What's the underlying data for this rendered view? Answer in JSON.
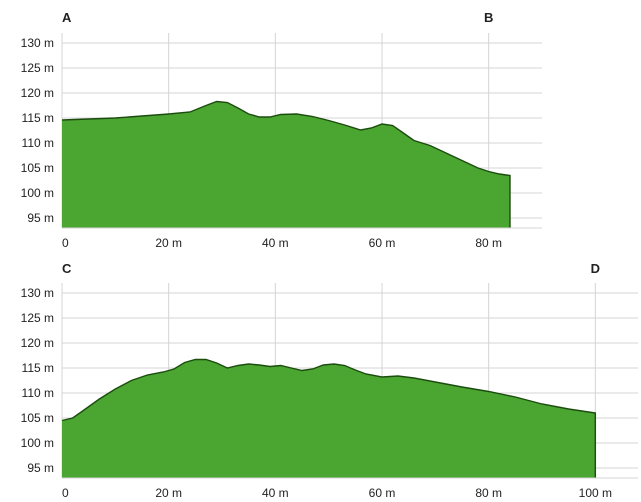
{
  "chart_data": [
    {
      "type": "area",
      "start_label": "A",
      "end_label": "B",
      "x_ticks": [
        "0",
        "20 m",
        "40 m",
        "60 m",
        "80 m"
      ],
      "y_ticks": [
        "95 m",
        "100 m",
        "105 m",
        "110 m",
        "115 m",
        "120 m",
        "125 m",
        "130 m"
      ],
      "xlim": [
        0,
        90
      ],
      "ylim": [
        93,
        132
      ],
      "grid": true,
      "x": [
        0,
        5,
        10,
        15,
        20,
        24,
        27,
        29,
        31,
        33,
        35,
        37,
        39,
        41,
        44,
        47,
        50,
        53,
        56,
        58,
        60,
        62,
        64,
        66,
        69,
        72,
        75,
        78,
        80,
        82,
        84
      ],
      "y": [
        114.6,
        114.8,
        115.0,
        115.4,
        115.8,
        116.2,
        117.5,
        118.3,
        118.1,
        117.0,
        115.8,
        115.2,
        115.2,
        115.7,
        115.8,
        115.3,
        114.5,
        113.6,
        112.6,
        113.0,
        113.8,
        113.5,
        112.0,
        110.5,
        109.5,
        108.0,
        106.5,
        105.0,
        104.3,
        103.8,
        103.5
      ]
    },
    {
      "type": "area",
      "start_label": "C",
      "end_label": "D",
      "x_ticks": [
        "0",
        "20 m",
        "40 m",
        "60 m",
        "80 m",
        "100 m"
      ],
      "y_ticks": [
        "95 m",
        "100 m",
        "105 m",
        "110 m",
        "115 m",
        "120 m",
        "125 m",
        "130 m"
      ],
      "xlim": [
        0,
        108
      ],
      "ylim": [
        93,
        132
      ],
      "grid": true,
      "x": [
        0,
        2,
        4,
        7,
        10,
        13,
        16,
        19,
        21,
        23,
        25,
        27,
        29,
        31,
        33,
        35,
        37,
        39,
        41,
        43,
        45,
        47,
        49,
        51,
        53,
        55,
        57,
        60,
        63,
        66,
        70,
        75,
        80,
        85,
        90,
        95,
        100
      ],
      "y": [
        104.5,
        105.0,
        106.5,
        108.8,
        110.8,
        112.5,
        113.6,
        114.2,
        114.8,
        116.1,
        116.7,
        116.7,
        116.0,
        115.0,
        115.5,
        115.8,
        115.6,
        115.3,
        115.5,
        115.0,
        114.5,
        114.8,
        115.6,
        115.8,
        115.5,
        114.6,
        113.8,
        113.2,
        113.4,
        113.0,
        112.2,
        111.2,
        110.3,
        109.2,
        107.8,
        106.8,
        106.0
      ]
    }
  ],
  "colors": {
    "fill": "#4aa531",
    "line": "#1c4d0f",
    "grid": "#d4d4d4",
    "text": "#222222"
  }
}
